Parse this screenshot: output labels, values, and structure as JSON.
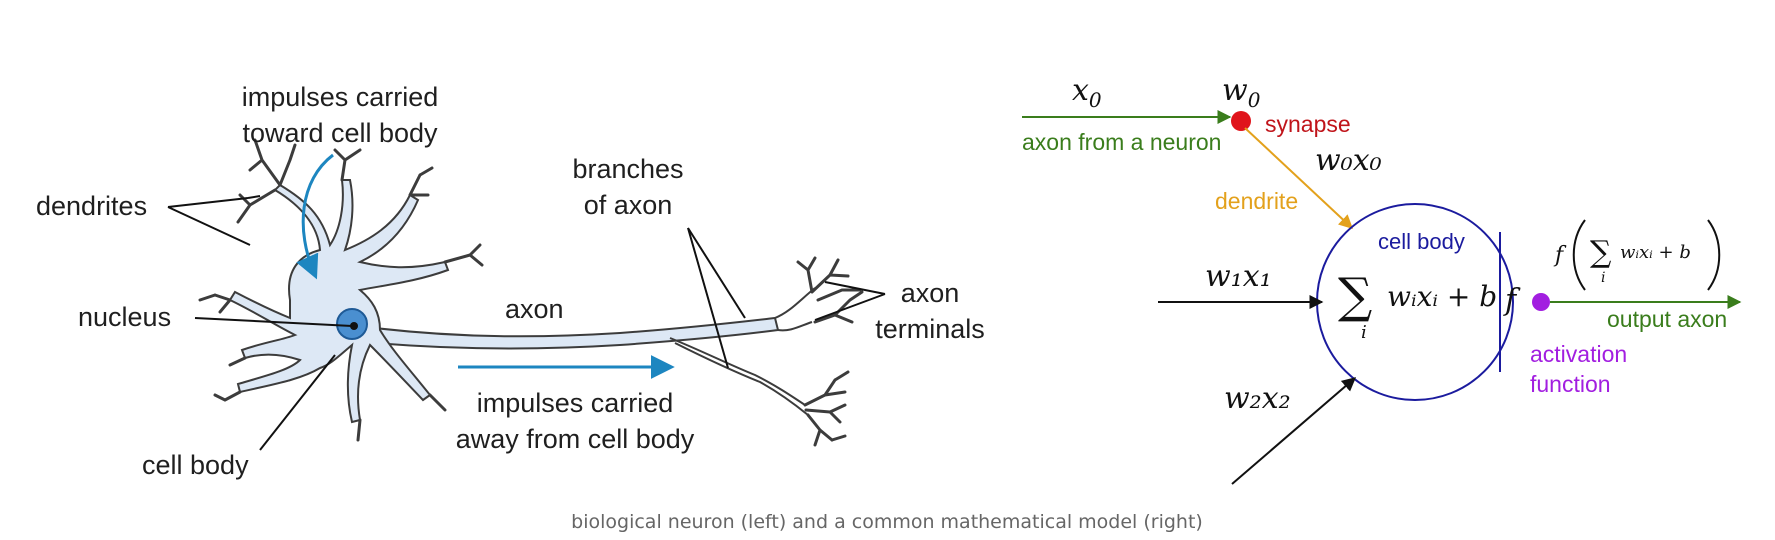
{
  "biological": {
    "impulses_toward": [
      "impulses carried",
      "toward cell body"
    ],
    "dendrites": "dendrites",
    "nucleus": "nucleus",
    "cell_body": "cell body",
    "axon": "axon",
    "branches_of_axon": [
      "branches",
      "of axon"
    ],
    "axon_terminals": [
      "axon",
      "terminals"
    ],
    "impulses_away": [
      "impulses carried",
      "away from cell body"
    ]
  },
  "model": {
    "x0": "x",
    "x0_sub": "0",
    "w0": "w",
    "w0_sub": "0",
    "synapse": "synapse",
    "axon_from_neuron": "axon from a neuron",
    "w0x0": "w₀x₀",
    "dendrite": "dendrite",
    "cell_body": "cell body",
    "w1x1": "w₁x₁",
    "w2x2": "w₂x₂",
    "sum_sign": "∑",
    "sum_index": "i",
    "sum_body": "wᵢxᵢ + b",
    "f": "f",
    "output_formula": "f",
    "output_sum_body": "wᵢxᵢ + b",
    "output_axon": "output axon",
    "activation": [
      "activation",
      "function"
    ]
  },
  "caption": "biological neuron (left) and a common mathematical model (right)",
  "colors": {
    "green": "#3a7d1c",
    "red": "#e0141b",
    "orange": "#e3a11c",
    "blue": "#1b1b9e",
    "purple": "#a21ee0",
    "cyan": "#1d86c0",
    "neuron_fill": "#dde8f5",
    "neuron_stroke": "#3c3c3c",
    "nucleus": "#4a8fd0"
  }
}
